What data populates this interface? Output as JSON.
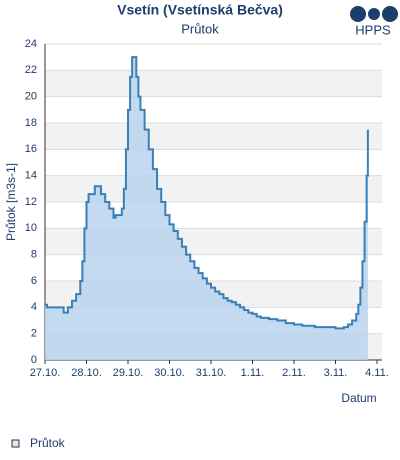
{
  "chart_data": {
    "type": "area-step",
    "title": "Vsetín (Vsetínská Bečva)",
    "subtitle": "Průtok",
    "logo": "HPPS",
    "y_label": "Průtok [m3s-1]",
    "x_label": "Datum",
    "x": [
      0,
      0.05,
      0.25,
      0.45,
      0.55,
      0.65,
      0.75,
      0.85,
      0.9,
      0.95,
      1.0,
      1.05,
      1.15,
      1.2,
      1.3,
      1.35,
      1.45,
      1.55,
      1.65,
      1.7,
      1.8,
      1.85,
      1.9,
      1.95,
      2.0,
      2.05,
      2.1,
      2.15,
      2.2,
      2.25,
      2.3,
      2.4,
      2.5,
      2.6,
      2.7,
      2.8,
      2.9,
      3.0,
      3.1,
      3.2,
      3.3,
      3.4,
      3.5,
      3.6,
      3.7,
      3.8,
      3.9,
      4.0,
      4.1,
      4.2,
      4.3,
      4.4,
      4.5,
      4.6,
      4.7,
      4.8,
      4.9,
      5.0,
      5.1,
      5.2,
      5.4,
      5.6,
      5.8,
      6.0,
      6.2,
      6.5,
      6.8,
      7.0,
      7.2,
      7.3,
      7.4,
      7.5,
      7.55,
      7.6,
      7.65,
      7.7,
      7.75,
      7.78
    ],
    "series": [
      {
        "name": "Průtok",
        "color": "#3a7fb5",
        "fill": "#b9d4ee",
        "values": [
          4.2,
          4.0,
          4.0,
          3.6,
          4.0,
          4.5,
          5,
          6,
          7.5,
          10,
          12,
          12.6,
          12.6,
          13.2,
          13.2,
          12.6,
          12.0,
          11.5,
          10.8,
          11.0,
          11.0,
          11.5,
          13,
          16,
          19,
          21.5,
          23,
          23,
          21.5,
          20,
          19,
          17.5,
          16,
          14.5,
          13,
          12,
          11,
          10.3,
          9.8,
          9.2,
          8.6,
          8.0,
          7.5,
          7.0,
          6.6,
          6.2,
          5.8,
          5.5,
          5.2,
          5.0,
          4.7,
          4.5,
          4.4,
          4.2,
          4.0,
          3.8,
          3.6,
          3.5,
          3.3,
          3.2,
          3.1,
          3.0,
          2.8,
          2.7,
          2.6,
          2.5,
          2.5,
          2.4,
          2.5,
          2.7,
          3.0,
          3.5,
          4.2,
          5.5,
          7.5,
          10.5,
          14,
          17.5
        ]
      }
    ],
    "xlim": [
      0,
      8
    ],
    "xticks": [
      {
        "value": 0,
        "label": "27.10."
      },
      {
        "value": 1,
        "label": "28.10."
      },
      {
        "value": 2,
        "label": "29.10."
      },
      {
        "value": 3,
        "label": "30.10."
      },
      {
        "value": 4,
        "label": "31.10."
      },
      {
        "value": 5,
        "label": "1.11."
      },
      {
        "value": 6,
        "label": "2.11."
      },
      {
        "value": 7,
        "label": "3.11."
      },
      {
        "value": 8,
        "label": "4.11."
      }
    ],
    "ylim": [
      0,
      24
    ],
    "yticks": [
      0,
      2,
      4,
      6,
      8,
      10,
      12,
      14,
      16,
      18,
      20,
      22,
      24
    ],
    "grid": true
  }
}
